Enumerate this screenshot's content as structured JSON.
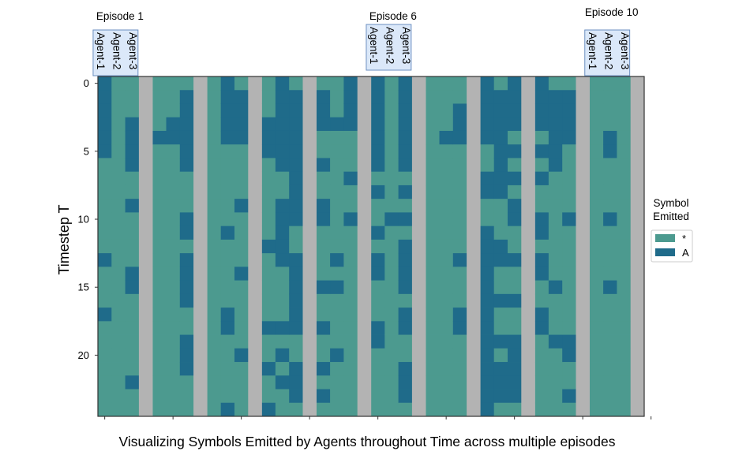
{
  "chart_data": {
    "type": "heatmap",
    "title": "Visualizing Symbols Emitted by Agents throughout Time across multiple episodes",
    "ylabel": "Timestep  T",
    "xlabel": "",
    "yticks": [
      0,
      5,
      10,
      15,
      20
    ],
    "ylim": [
      0,
      24
    ],
    "episodes_shown": 10,
    "episode_annotations": [
      {
        "label": "Episode 1",
        "episode": 1
      },
      {
        "label": "Episode 6",
        "episode": 6
      },
      {
        "label": "Episode 10",
        "episode": 10
      }
    ],
    "agents": [
      "Agent-1",
      "Agent-2",
      "Agent-3"
    ],
    "legend": {
      "title_lines": [
        "Symbol",
        "Emitted"
      ],
      "position": "right",
      "entries": [
        {
          "label": "*",
          "color": "#4c9a8f"
        },
        {
          "label": "A",
          "color": "#1f6b8a"
        }
      ]
    },
    "separator_color": "#b3b3b3",
    "frame_color": "#333333",
    "columns": [
      {
        "episode": 1,
        "agent": "Agent-1",
        "A_timesteps": [
          0,
          1,
          2,
          3,
          4,
          5,
          13,
          17
        ]
      },
      {
        "episode": 1,
        "agent": "Agent-2",
        "A_timesteps": []
      },
      {
        "episode": 1,
        "agent": "Agent-3",
        "A_timesteps": [
          3,
          4,
          5,
          6,
          9,
          14,
          15,
          22
        ]
      },
      {
        "episode": 2,
        "agent": "Agent-1",
        "A_timesteps": [
          4
        ]
      },
      {
        "episode": 2,
        "agent": "Agent-2",
        "A_timesteps": [
          3,
          4
        ]
      },
      {
        "episode": 2,
        "agent": "Agent-3",
        "A_timesteps": [
          1,
          2,
          3,
          4,
          5,
          6,
          10,
          11,
          13,
          14,
          15,
          16,
          19,
          20,
          21
        ]
      },
      {
        "episode": 3,
        "agent": "Agent-1",
        "A_timesteps": []
      },
      {
        "episode": 3,
        "agent": "Agent-2",
        "A_timesteps": [
          0,
          1,
          2,
          3,
          4,
          11,
          17,
          18,
          24
        ]
      },
      {
        "episode": 3,
        "agent": "Agent-3",
        "A_timesteps": [
          1,
          2,
          3,
          4,
          9,
          14,
          20
        ]
      },
      {
        "episode": 4,
        "agent": "Agent-1",
        "A_timesteps": [
          3,
          4,
          5,
          12,
          18,
          21,
          24
        ]
      },
      {
        "episode": 4,
        "agent": "Agent-2",
        "A_timesteps": [
          0,
          1,
          2,
          3,
          4,
          5,
          6,
          9,
          10,
          11,
          12,
          13,
          18,
          20,
          22
        ]
      },
      {
        "episode": 4,
        "agent": "Agent-3",
        "A_timesteps": [
          1,
          2,
          3,
          4,
          5,
          6,
          7,
          8,
          9,
          10,
          13,
          14,
          15,
          16,
          17,
          18,
          21,
          22,
          23
        ]
      },
      {
        "episode": 5,
        "agent": "Agent-1",
        "A_timesteps": [
          1,
          2,
          3,
          6,
          9,
          10,
          15,
          18,
          21,
          23
        ]
      },
      {
        "episode": 5,
        "agent": "Agent-2",
        "A_timesteps": [
          3,
          13,
          15,
          20
        ]
      },
      {
        "episode": 5,
        "agent": "Agent-3",
        "A_timesteps": [
          0,
          1,
          2,
          3,
          7,
          10
        ]
      },
      {
        "episode": 6,
        "agent": "Agent-1",
        "A_timesteps": [
          0,
          1,
          2,
          3,
          4,
          5,
          6,
          8,
          11,
          13,
          14,
          18,
          19
        ]
      },
      {
        "episode": 6,
        "agent": "Agent-2",
        "A_timesteps": [
          10
        ]
      },
      {
        "episode": 6,
        "agent": "Agent-3",
        "A_timesteps": [
          0,
          1,
          2,
          3,
          4,
          5,
          6,
          8,
          10,
          12,
          13,
          14,
          15,
          17,
          18,
          21,
          22,
          23
        ]
      },
      {
        "episode": 7,
        "agent": "Agent-1",
        "A_timesteps": []
      },
      {
        "episode": 7,
        "agent": "Agent-2",
        "A_timesteps": [
          4
        ]
      },
      {
        "episode": 7,
        "agent": "Agent-3",
        "A_timesteps": [
          2,
          3,
          4,
          13,
          17,
          18
        ]
      },
      {
        "episode": 8,
        "agent": "Agent-1",
        "A_timesteps": [
          0,
          1,
          2,
          3,
          4,
          7,
          8,
          11,
          12,
          13,
          14,
          15,
          16,
          17,
          18,
          19,
          20,
          21,
          22,
          23,
          24
        ]
      },
      {
        "episode": 8,
        "agent": "Agent-2",
        "A_timesteps": [
          1,
          2,
          3,
          4,
          5,
          6,
          7,
          8,
          12,
          13,
          16,
          19,
          21,
          22,
          23
        ]
      },
      {
        "episode": 8,
        "agent": "Agent-3",
        "A_timesteps": [
          0,
          1,
          2,
          3,
          5,
          7,
          9,
          10,
          13,
          16,
          19,
          20,
          21,
          22,
          23
        ]
      },
      {
        "episode": 9,
        "agent": "Agent-1",
        "A_timesteps": [
          0,
          1,
          2,
          3,
          5,
          7,
          10,
          11,
          13,
          14,
          17,
          18
        ]
      },
      {
        "episode": 9,
        "agent": "Agent-2",
        "A_timesteps": [
          1,
          2,
          3,
          4,
          5,
          6,
          15,
          19
        ]
      },
      {
        "episode": 9,
        "agent": "Agent-3",
        "A_timesteps": [
          1,
          2,
          3,
          4,
          10,
          19,
          20,
          23
        ]
      },
      {
        "episode": 10,
        "agent": "Agent-1",
        "A_timesteps": []
      },
      {
        "episode": 10,
        "agent": "Agent-2",
        "A_timesteps": [
          4,
          5,
          10,
          15
        ]
      },
      {
        "episode": 10,
        "agent": "Agent-3",
        "A_timesteps": []
      }
    ]
  }
}
